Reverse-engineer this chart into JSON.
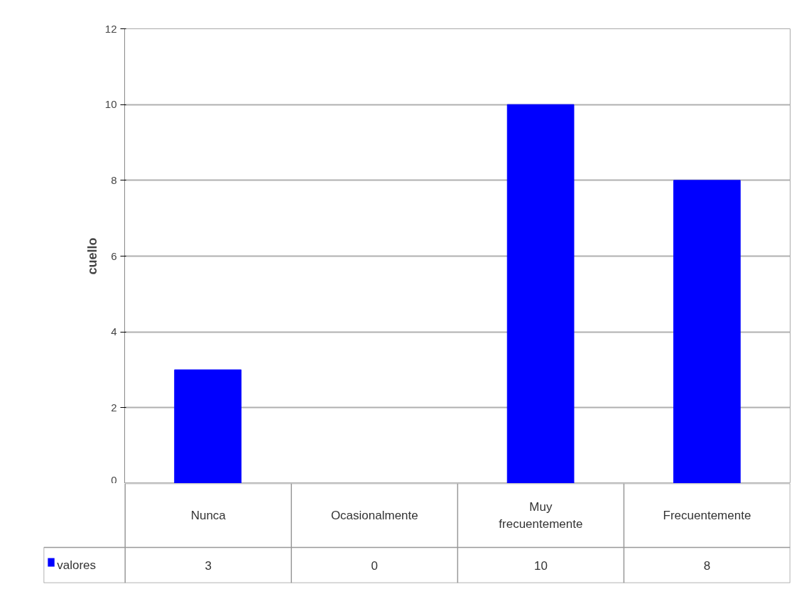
{
  "chart_data": {
    "type": "bar",
    "ylabel": "cuello",
    "categories": [
      "Nunca",
      "Ocasionalmente",
      "Muy frecuentemente",
      "Frecuentemente"
    ],
    "series": [
      {
        "name": "valores",
        "color": "#0000ff",
        "values": [
          3,
          0,
          10,
          8
        ]
      }
    ],
    "ylim": [
      0,
      12
    ],
    "yticks": [
      0,
      2,
      4,
      6,
      8,
      10,
      12
    ],
    "grid": "y",
    "data_labels": true,
    "legend": "bottom left"
  }
}
